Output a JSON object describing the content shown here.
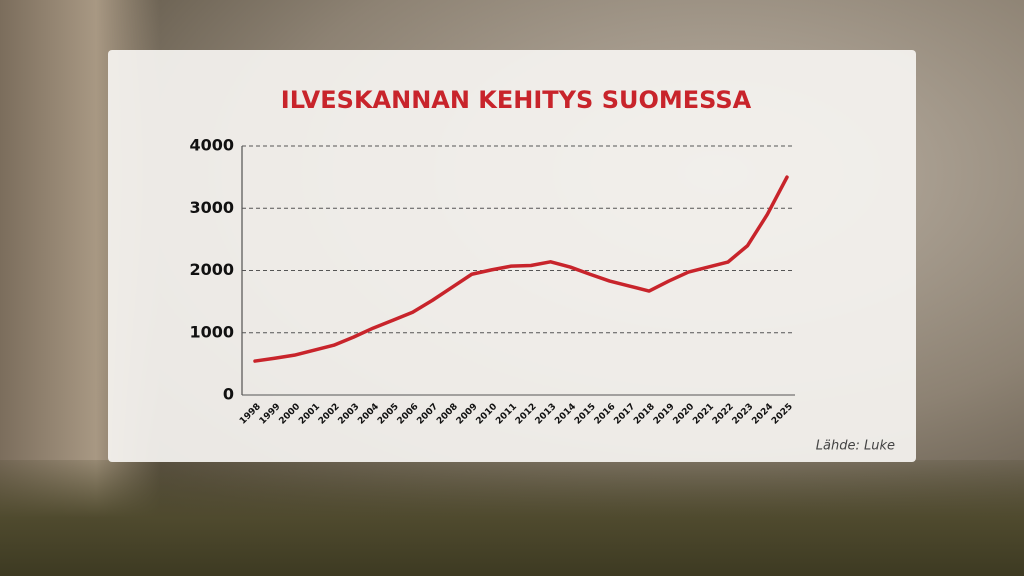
{
  "chart_data": {
    "type": "line",
    "title": "ILVESKANNAN KEHITYS SUOMESSA",
    "source": "Lähde: Luke",
    "x": [
      1998,
      1999,
      2000,
      2001,
      2002,
      2003,
      2004,
      2005,
      2006,
      2007,
      2008,
      2009,
      2010,
      2011,
      2012,
      2013,
      2014,
      2015,
      2016,
      2017,
      2018,
      2019,
      2020,
      2021,
      2022,
      2023,
      2024,
      2025
    ],
    "series": [
      {
        "color": "#c8242b",
        "values": [
          545,
          590,
          640,
          720,
          800,
          930,
          1075,
          1200,
          1330,
          1520,
          1730,
          1940,
          2010,
          2070,
          2080,
          2140,
          2055,
          1940,
          1830,
          1750,
          1670,
          1830,
          1975,
          2055,
          2135,
          2400,
          2900,
          3500
        ]
      }
    ],
    "xlim": [
      1998,
      2025
    ],
    "ylim": [
      0,
      4000
    ],
    "yticks": [
      0,
      1000,
      2000,
      3000,
      4000
    ],
    "grid": true
  }
}
